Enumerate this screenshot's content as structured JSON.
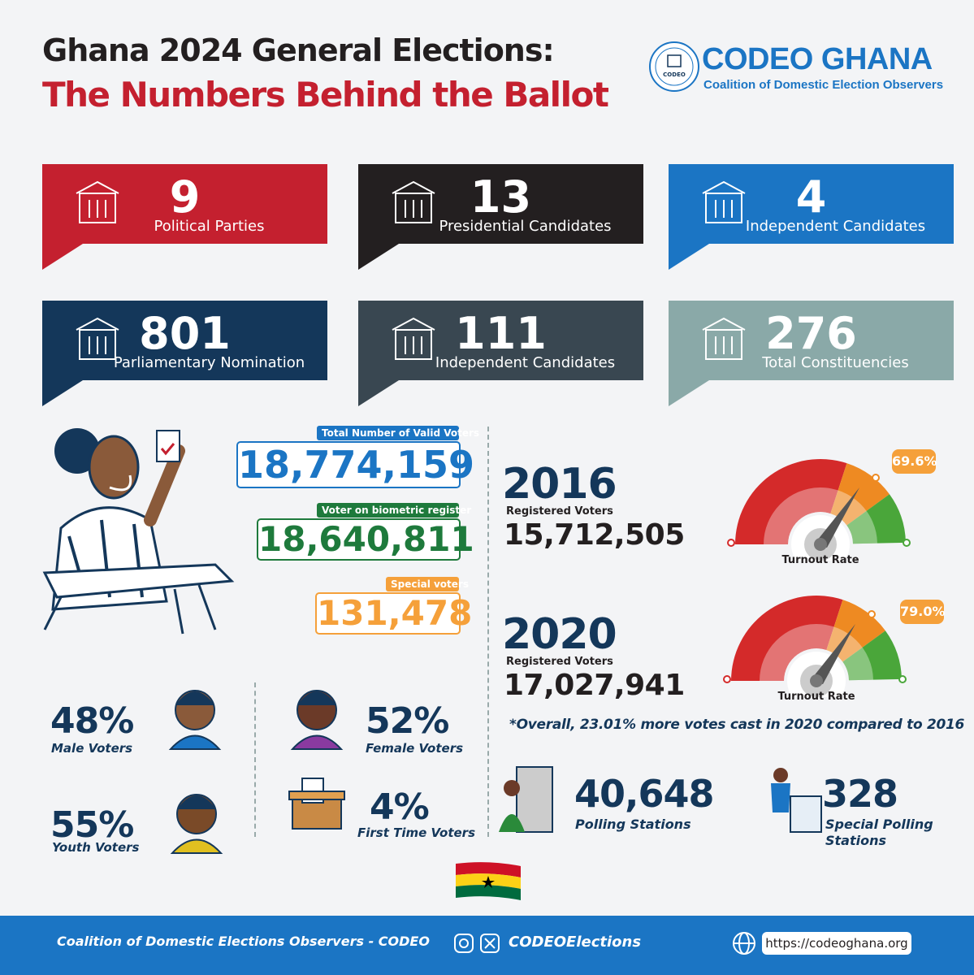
{
  "header": {
    "title_line1": "Ghana 2024 General Elections:",
    "title_line2": "The Numbers Behind the Ballot"
  },
  "logo": {
    "seal": "CODEO",
    "name": "CODEO GHANA",
    "subtitle": "Coalition of Domestic Election Observers"
  },
  "stats": [
    {
      "value": "9",
      "label": "Political Parties"
    },
    {
      "value": "13",
      "label": "Presidential Candidates"
    },
    {
      "value": "4",
      "label": "Independent  Candidates"
    },
    {
      "value": "801",
      "label": "Parliamentary Nomination"
    },
    {
      "value": "111",
      "label": "Independent Candidates"
    },
    {
      "value": "276",
      "label": "Total Constituencies"
    }
  ],
  "voters": [
    {
      "label": "Total Number of Valid Voters",
      "value": "18,774,159"
    },
    {
      "label": "Voter on biometric register",
      "value": "18,640,811"
    },
    {
      "label": "Special voters",
      "value": "131,478"
    }
  ],
  "elections": [
    {
      "year": "2016",
      "registered_label": "Registered Voters",
      "registered": "15,712,505",
      "turnout": "69.6%",
      "turnout_label": "Turnout Rate"
    },
    {
      "year": "2020",
      "registered_label": "Registered Voters",
      "registered": "17,027,941",
      "turnout": "79.0%",
      "turnout_label": "Turnout Rate"
    }
  ],
  "note": "*Overall, 23.01% more votes cast in 2020 compared to 2016",
  "demographics": [
    {
      "value": "48%",
      "label": "Male Voters"
    },
    {
      "value": "52%",
      "label": "Female Voters"
    },
    {
      "value": "55%",
      "label": "Youth Voters"
    },
    {
      "value": "4%",
      "label": "First Time Voters"
    }
  ],
  "polling": [
    {
      "value": "40,648",
      "label": "Polling Stations"
    },
    {
      "value": "328",
      "label": "Special Polling Stations"
    }
  ],
  "footer": {
    "org": "Coalition of Domestic Elections Observers - CODEO",
    "handle": "CODEOElections",
    "url": "https://codeoghana.org"
  }
}
